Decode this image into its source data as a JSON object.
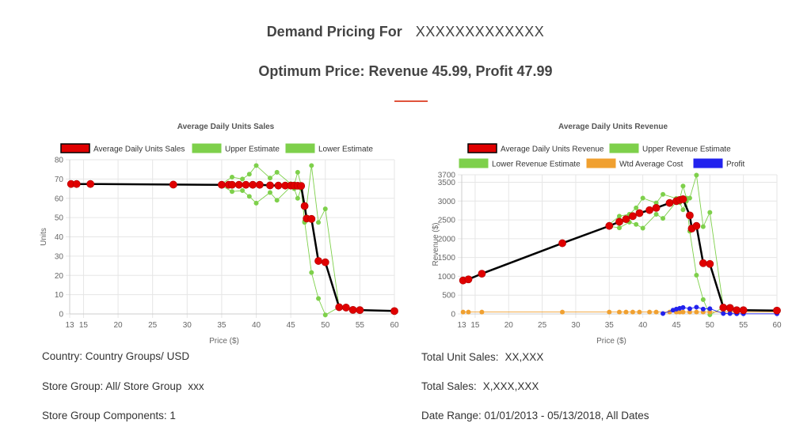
{
  "header": {
    "title": "Demand Pricing For",
    "title_value": "XXXXXXXXXXXXX",
    "optimum": "Optimum Price: Revenue 45.99, Profit 47.99",
    "accent_color": "#e0533b"
  },
  "colors": {
    "average": "#e00000",
    "average_line": "#000000",
    "estimate": "#7ed04b",
    "cost": "#f0a030",
    "profit": "#2222ee",
    "grid": "#e6e6e6",
    "axis_text": "#666666"
  },
  "chart_data": [
    {
      "type": "line",
      "title": "Average Daily Units Sales",
      "xlabel": "Price ($)",
      "ylabel": "Units",
      "xlim": [
        13,
        60
      ],
      "ylim": [
        0,
        80
      ],
      "x_ticks": [
        13,
        15,
        20,
        25,
        30,
        35,
        40,
        45,
        50,
        55,
        60
      ],
      "y_ticks": [
        0,
        10,
        20,
        30,
        40,
        50,
        60,
        70,
        80
      ],
      "grid": true,
      "legend_position": "top",
      "series": [
        {
          "name": "Average Daily Units Sales",
          "color": "#e00000",
          "points": [
            [
              13.2,
              67.4
            ],
            [
              14,
              67.4
            ],
            [
              16,
              67.4
            ],
            [
              28,
              67.1
            ],
            [
              35,
              67
            ],
            [
              36,
              67
            ],
            [
              36.5,
              67
            ],
            [
              37.5,
              67
            ],
            [
              38.5,
              67
            ],
            [
              39.5,
              67
            ],
            [
              40.5,
              67
            ],
            [
              42,
              66.7
            ],
            [
              43.2,
              66.6
            ],
            [
              44.2,
              66.6
            ],
            [
              45,
              66.6
            ],
            [
              45.5,
              66.6
            ],
            [
              46,
              66.5
            ],
            [
              46.5,
              66.4
            ],
            [
              47,
              56
            ],
            [
              47.3,
              49.5
            ],
            [
              48,
              49.3
            ],
            [
              49,
              27.5
            ],
            [
              50,
              26.8
            ],
            [
              52,
              3.5
            ],
            [
              53,
              3.3
            ],
            [
              54,
              2.1
            ],
            [
              55,
              2
            ],
            [
              60,
              1.5
            ]
          ]
        },
        {
          "name": "Upper Estimate",
          "color": "#7ed04b",
          "points": [
            [
              35,
              67.5
            ],
            [
              36.5,
              71
            ],
            [
              38,
              70
            ],
            [
              39,
              72.5
            ],
            [
              40,
              77
            ],
            [
              42,
              70.5
            ],
            [
              43,
              73.5
            ],
            [
              45,
              67.5
            ],
            [
              45.5,
              67
            ],
            [
              46,
              73.5
            ],
            [
              46.5,
              67
            ],
            [
              47,
              47.5
            ],
            [
              48,
              77
            ],
            [
              49,
              47.5
            ],
            [
              50,
              54.5
            ],
            [
              52,
              3.5
            ],
            [
              53,
              3
            ],
            [
              54,
              2.5
            ],
            [
              55,
              2
            ],
            [
              60,
              1.5
            ]
          ]
        },
        {
          "name": "Lower Estimate",
          "color": "#7ed04b",
          "points": [
            [
              35,
              66.5
            ],
            [
              36.5,
              63.5
            ],
            [
              38,
              64
            ],
            [
              39,
              61
            ],
            [
              40,
              57.5
            ],
            [
              42,
              63
            ],
            [
              43,
              59
            ],
            [
              45,
              66
            ],
            [
              45.5,
              65
            ],
            [
              46,
              60
            ],
            [
              46.5,
              65
            ],
            [
              47,
              48
            ],
            [
              48,
              21.5
            ],
            [
              49,
              8
            ],
            [
              50,
              -0.5
            ],
            [
              52,
              3.5
            ],
            [
              53,
              3
            ],
            [
              54,
              2
            ],
            [
              55,
              2
            ],
            [
              60,
              1.5
            ]
          ]
        }
      ]
    },
    {
      "type": "line",
      "title": "Average Daily Units Revenue",
      "xlabel": "Price ($)",
      "ylabel": "Revenue ($)",
      "xlim": [
        13,
        60
      ],
      "ylim": [
        0,
        3700
      ],
      "x_ticks": [
        13,
        15,
        20,
        25,
        30,
        35,
        40,
        45,
        50,
        55,
        60
      ],
      "y_ticks": [
        0,
        500,
        1000,
        1500,
        2000,
        2500,
        3000,
        3500,
        3700
      ],
      "grid": true,
      "legend_position": "top",
      "series": [
        {
          "name": "Average Daily Units Revenue",
          "color": "#e00000",
          "points": [
            [
              13.2,
              890
            ],
            [
              14,
              920
            ],
            [
              16,
              1070
            ],
            [
              28,
              1880
            ],
            [
              35,
              2340
            ],
            [
              36.5,
              2450
            ],
            [
              37.5,
              2520
            ],
            [
              38.5,
              2600
            ],
            [
              39.5,
              2680
            ],
            [
              41,
              2760
            ],
            [
              42,
              2820
            ],
            [
              44,
              2950
            ],
            [
              45,
              3000
            ],
            [
              45.5,
              3030
            ],
            [
              46,
              3050
            ],
            [
              47,
              2620
            ],
            [
              47.3,
              2270
            ],
            [
              48,
              2340
            ],
            [
              49,
              1350
            ],
            [
              50,
              1330
            ],
            [
              52,
              170
            ],
            [
              53,
              160
            ],
            [
              54,
              100
            ],
            [
              55,
              100
            ],
            [
              60,
              90
            ]
          ]
        },
        {
          "name": "Upper Revenue Estimate",
          "color": "#7ed04b",
          "points": [
            [
              35,
              2380
            ],
            [
              36.5,
              2600
            ],
            [
              38,
              2650
            ],
            [
              39,
              2820
            ],
            [
              40,
              3080
            ],
            [
              42,
              2950
            ],
            [
              43,
              3180
            ],
            [
              45,
              3070
            ],
            [
              45.5,
              3050
            ],
            [
              46,
              3400
            ],
            [
              46.5,
              3080
            ],
            [
              47,
              3080
            ],
            [
              48,
              3690
            ],
            [
              49,
              2320
            ],
            [
              50,
              2700
            ],
            [
              52,
              180
            ],
            [
              53,
              160
            ],
            [
              54,
              120
            ],
            [
              55,
              100
            ],
            [
              60,
              90
            ]
          ]
        },
        {
          "name": "Lower Revenue Estimate",
          "color": "#7ed04b",
          "points": [
            [
              35,
              2330
            ],
            [
              36.5,
              2290
            ],
            [
              38,
              2440
            ],
            [
              39,
              2380
            ],
            [
              40,
              2280
            ],
            [
              42,
              2650
            ],
            [
              43,
              2540
            ],
            [
              45,
              2980
            ],
            [
              45.5,
              2960
            ],
            [
              46,
              2770
            ],
            [
              46.5,
              3000
            ],
            [
              47,
              2200
            ],
            [
              48,
              1030
            ],
            [
              49,
              380
            ],
            [
              50,
              -20
            ],
            [
              52,
              170
            ],
            [
              53,
              150
            ],
            [
              54,
              110
            ],
            [
              55,
              100
            ],
            [
              60,
              90
            ]
          ]
        },
        {
          "name": "Wtd Average Cost",
          "color": "#f0a030",
          "points": [
            [
              13.2,
              50
            ],
            [
              14,
              50
            ],
            [
              16,
              50
            ],
            [
              28,
              50
            ],
            [
              35,
              50
            ],
            [
              36.5,
              50
            ],
            [
              37.5,
              50
            ],
            [
              38.5,
              50
            ],
            [
              39.5,
              50
            ],
            [
              41,
              50
            ],
            [
              42,
              50
            ],
            [
              44,
              50
            ],
            [
              45,
              50
            ],
            [
              45.5,
              50
            ],
            [
              46,
              50
            ],
            [
              47,
              50
            ],
            [
              48,
              50
            ],
            [
              49,
              50
            ],
            [
              50,
              50
            ],
            [
              52,
              50
            ],
            [
              53,
              50
            ],
            [
              54,
              50
            ],
            [
              55,
              50
            ],
            [
              60,
              50
            ]
          ]
        },
        {
          "name": "Profit",
          "color": "#2222ee",
          "points": [
            [
              43,
              10
            ],
            [
              44.5,
              100
            ],
            [
              45,
              130
            ],
            [
              45.5,
              150
            ],
            [
              46,
              170
            ],
            [
              47,
              140
            ],
            [
              48,
              180
            ],
            [
              49,
              130
            ],
            [
              50,
              140
            ],
            [
              52,
              10
            ],
            [
              53,
              10
            ],
            [
              54,
              5
            ],
            [
              55,
              5
            ],
            [
              60,
              5
            ]
          ]
        }
      ]
    }
  ],
  "info_left": [
    {
      "label": "Country: Country Groups/ USD",
      "value": ""
    },
    {
      "label": "Store Group: All/ Store Group",
      "value": "xxx"
    },
    {
      "label": "Store Group Components: 1",
      "value": ""
    }
  ],
  "info_right": [
    {
      "label": "Total Unit Sales:",
      "value": "XX,XXX"
    },
    {
      "label": "Total Sales:",
      "value": "X,XXX,XXX"
    },
    {
      "label": "Date Range: 01/01/2013 - 05/13/2018, All Dates",
      "value": ""
    }
  ]
}
